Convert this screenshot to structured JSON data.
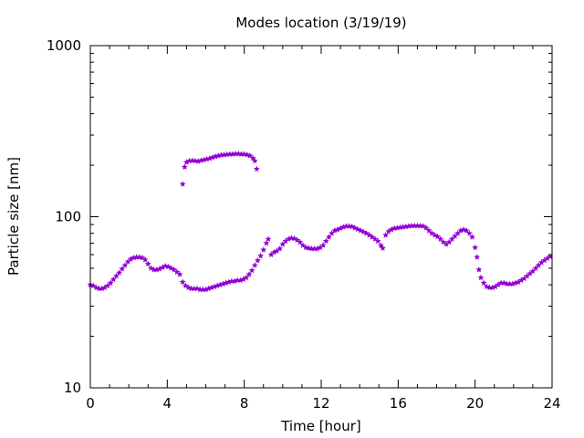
{
  "chart_data": {
    "type": "scatter",
    "title": "Modes location (3/19/19)",
    "xlabel": "Time [hour]",
    "ylabel": "Particle size [nm]",
    "xlim": [
      0,
      24
    ],
    "ylim": [
      10,
      1000
    ],
    "yscale": "log",
    "grid": false,
    "legend": "none",
    "marker_color": "#9400d3",
    "marker": "star",
    "x_ticks": [
      "0",
      "4",
      "8",
      "12",
      "16",
      "20",
      "24"
    ],
    "y_ticks": [
      "10",
      "100",
      "1000"
    ],
    "series": [
      {
        "points": [
          [
            0.0,
            40
          ],
          [
            0.15,
            39.5
          ],
          [
            0.3,
            38.5
          ],
          [
            0.45,
            38
          ],
          [
            0.6,
            38
          ],
          [
            0.75,
            38.5
          ],
          [
            0.9,
            39.5
          ],
          [
            1.05,
            41
          ],
          [
            1.2,
            43
          ],
          [
            1.35,
            45
          ],
          [
            1.5,
            47
          ],
          [
            1.65,
            49.5
          ],
          [
            1.8,
            52
          ],
          [
            1.95,
            54.5
          ],
          [
            2.1,
            56.5
          ],
          [
            2.25,
            57.5
          ],
          [
            2.4,
            58
          ],
          [
            2.55,
            58
          ],
          [
            2.7,
            57.5
          ],
          [
            2.85,
            56
          ],
          [
            3.0,
            53
          ],
          [
            3.15,
            50
          ],
          [
            3.3,
            49
          ],
          [
            3.45,
            49
          ],
          [
            3.6,
            49.5
          ],
          [
            3.75,
            50.5
          ],
          [
            3.9,
            51.5
          ],
          [
            4.05,
            51
          ],
          [
            4.2,
            50
          ],
          [
            4.35,
            49
          ],
          [
            4.5,
            47.5
          ],
          [
            4.65,
            46
          ],
          [
            4.8,
            41.5
          ],
          [
            4.95,
            39.5
          ],
          [
            5.1,
            38.5
          ],
          [
            5.25,
            38
          ],
          [
            5.4,
            38
          ],
          [
            5.55,
            38
          ],
          [
            5.7,
            37.5
          ],
          [
            5.85,
            37.5
          ],
          [
            6.0,
            37.5
          ],
          [
            6.15,
            38
          ],
          [
            6.3,
            38.5
          ],
          [
            6.45,
            39
          ],
          [
            6.6,
            39.5
          ],
          [
            6.75,
            40
          ],
          [
            6.9,
            40.5
          ],
          [
            7.05,
            41
          ],
          [
            7.2,
            41.5
          ],
          [
            7.35,
            42
          ],
          [
            7.5,
            42
          ],
          [
            7.65,
            42.5
          ],
          [
            7.8,
            42.5
          ],
          [
            7.95,
            43
          ],
          [
            8.1,
            44
          ],
          [
            8.25,
            46
          ],
          [
            8.4,
            48.5
          ],
          [
            8.55,
            52
          ],
          [
            8.7,
            55.5
          ],
          [
            8.85,
            59
          ],
          [
            9.0,
            64
          ],
          [
            9.15,
            70
          ],
          [
            9.25,
            74
          ],
          [
            9.4,
            60
          ],
          [
            9.55,
            62
          ],
          [
            9.7,
            63
          ],
          [
            9.85,
            65
          ],
          [
            10.0,
            69
          ],
          [
            10.15,
            72
          ],
          [
            10.3,
            74
          ],
          [
            10.45,
            75
          ],
          [
            10.6,
            74.5
          ],
          [
            10.75,
            73
          ],
          [
            10.9,
            71
          ],
          [
            11.05,
            68
          ],
          [
            11.2,
            66
          ],
          [
            11.35,
            65.5
          ],
          [
            11.5,
            65
          ],
          [
            11.65,
            65
          ],
          [
            11.8,
            65
          ],
          [
            11.95,
            66
          ],
          [
            12.1,
            68
          ],
          [
            12.25,
            72
          ],
          [
            12.4,
            76
          ],
          [
            12.55,
            80
          ],
          [
            12.7,
            83
          ],
          [
            12.85,
            84
          ],
          [
            13.0,
            85.5
          ],
          [
            13.15,
            87
          ],
          [
            13.3,
            88
          ],
          [
            13.45,
            88
          ],
          [
            13.6,
            87.5
          ],
          [
            13.75,
            86
          ],
          [
            13.9,
            84.5
          ],
          [
            14.05,
            83
          ],
          [
            14.2,
            81.5
          ],
          [
            14.35,
            80
          ],
          [
            14.5,
            78
          ],
          [
            14.65,
            76
          ],
          [
            14.8,
            74
          ],
          [
            14.95,
            72
          ],
          [
            15.1,
            68
          ],
          [
            15.2,
            65.5
          ],
          [
            15.35,
            78
          ],
          [
            15.5,
            82
          ],
          [
            15.65,
            84
          ],
          [
            15.8,
            85.5
          ],
          [
            15.95,
            86
          ],
          [
            16.1,
            86.5
          ],
          [
            16.25,
            87
          ],
          [
            16.4,
            87.5
          ],
          [
            16.55,
            88
          ],
          [
            16.7,
            88.5
          ],
          [
            16.85,
            88.5
          ],
          [
            17.0,
            88.5
          ],
          [
            17.15,
            88.5
          ],
          [
            17.3,
            88
          ],
          [
            17.45,
            86
          ],
          [
            17.6,
            83
          ],
          [
            17.75,
            80
          ],
          [
            17.9,
            78
          ],
          [
            18.05,
            76.5
          ],
          [
            18.2,
            74
          ],
          [
            18.35,
            71
          ],
          [
            18.5,
            69
          ],
          [
            18.65,
            71
          ],
          [
            18.8,
            74
          ],
          [
            18.95,
            77
          ],
          [
            19.1,
            80
          ],
          [
            19.25,
            83
          ],
          [
            19.4,
            84
          ],
          [
            19.55,
            83
          ],
          [
            19.7,
            80
          ],
          [
            19.85,
            76
          ],
          [
            20.0,
            66
          ],
          [
            20.1,
            58
          ],
          [
            20.2,
            49
          ],
          [
            20.3,
            44
          ],
          [
            20.45,
            41
          ],
          [
            20.6,
            39
          ],
          [
            20.75,
            38.5
          ],
          [
            20.9,
            38.5
          ],
          [
            21.05,
            39
          ],
          [
            21.2,
            40
          ],
          [
            21.35,
            41
          ],
          [
            21.5,
            41
          ],
          [
            21.65,
            40.5
          ],
          [
            21.8,
            40.5
          ],
          [
            21.95,
            40.5
          ],
          [
            22.1,
            41
          ],
          [
            22.25,
            41.5
          ],
          [
            22.4,
            42.5
          ],
          [
            22.55,
            43.5
          ],
          [
            22.7,
            45
          ],
          [
            22.85,
            46.5
          ],
          [
            23.0,
            48
          ],
          [
            23.15,
            50
          ],
          [
            23.3,
            52
          ],
          [
            23.45,
            54
          ],
          [
            23.6,
            55.5
          ],
          [
            23.75,
            57
          ],
          [
            23.9,
            58.5
          ],
          [
            4.8,
            155
          ],
          [
            4.9,
            195
          ],
          [
            5.0,
            208
          ],
          [
            5.15,
            212
          ],
          [
            5.3,
            213
          ],
          [
            5.45,
            212
          ],
          [
            5.6,
            211
          ],
          [
            5.75,
            213
          ],
          [
            5.9,
            215
          ],
          [
            6.05,
            217
          ],
          [
            6.2,
            219
          ],
          [
            6.35,
            222
          ],
          [
            6.5,
            225
          ],
          [
            6.65,
            227
          ],
          [
            6.8,
            229
          ],
          [
            6.95,
            230
          ],
          [
            7.1,
            231
          ],
          [
            7.25,
            232
          ],
          [
            7.4,
            232
          ],
          [
            7.55,
            233
          ],
          [
            7.7,
            233
          ],
          [
            7.85,
            232
          ],
          [
            8.0,
            232
          ],
          [
            8.15,
            230
          ],
          [
            8.3,
            227
          ],
          [
            8.45,
            220
          ],
          [
            8.55,
            212
          ],
          [
            8.65,
            190
          ]
        ]
      }
    ]
  }
}
